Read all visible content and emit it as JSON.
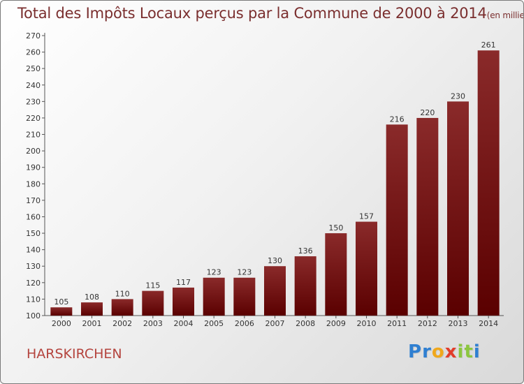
{
  "chart_data": {
    "type": "bar",
    "title": "Total des Impôts Locaux perçus par la Commune de 2000 à 2014",
    "unit": "(en milliers d'€)",
    "categories": [
      "2000",
      "2001",
      "2002",
      "2003",
      "2004",
      "2005",
      "2006",
      "2007",
      "2008",
      "2009",
      "2010",
      "2011",
      "2012",
      "2013",
      "2014"
    ],
    "values": [
      105,
      108,
      110,
      115,
      117,
      123,
      123,
      130,
      136,
      150,
      157,
      216,
      220,
      230,
      261
    ],
    "ylim": [
      100,
      270
    ],
    "yticks": [
      100,
      110,
      120,
      130,
      140,
      150,
      160,
      170,
      180,
      190,
      200,
      210,
      220,
      230,
      240,
      250,
      260,
      270
    ],
    "bar_color_light": "#8a2a2a",
    "bar_color_dark": "#5a0000",
    "grid": false
  },
  "commune": "HARSKIRCHEN",
  "logo": {
    "letters": [
      "P",
      "r",
      "o",
      "x",
      "i",
      "t",
      "i"
    ],
    "colors": [
      "#2f7fd1",
      "#2f7fd1",
      "#f0a81c",
      "#e23d2b",
      "#8cc63f",
      "#8cc63f",
      "#2f7fd1"
    ]
  }
}
